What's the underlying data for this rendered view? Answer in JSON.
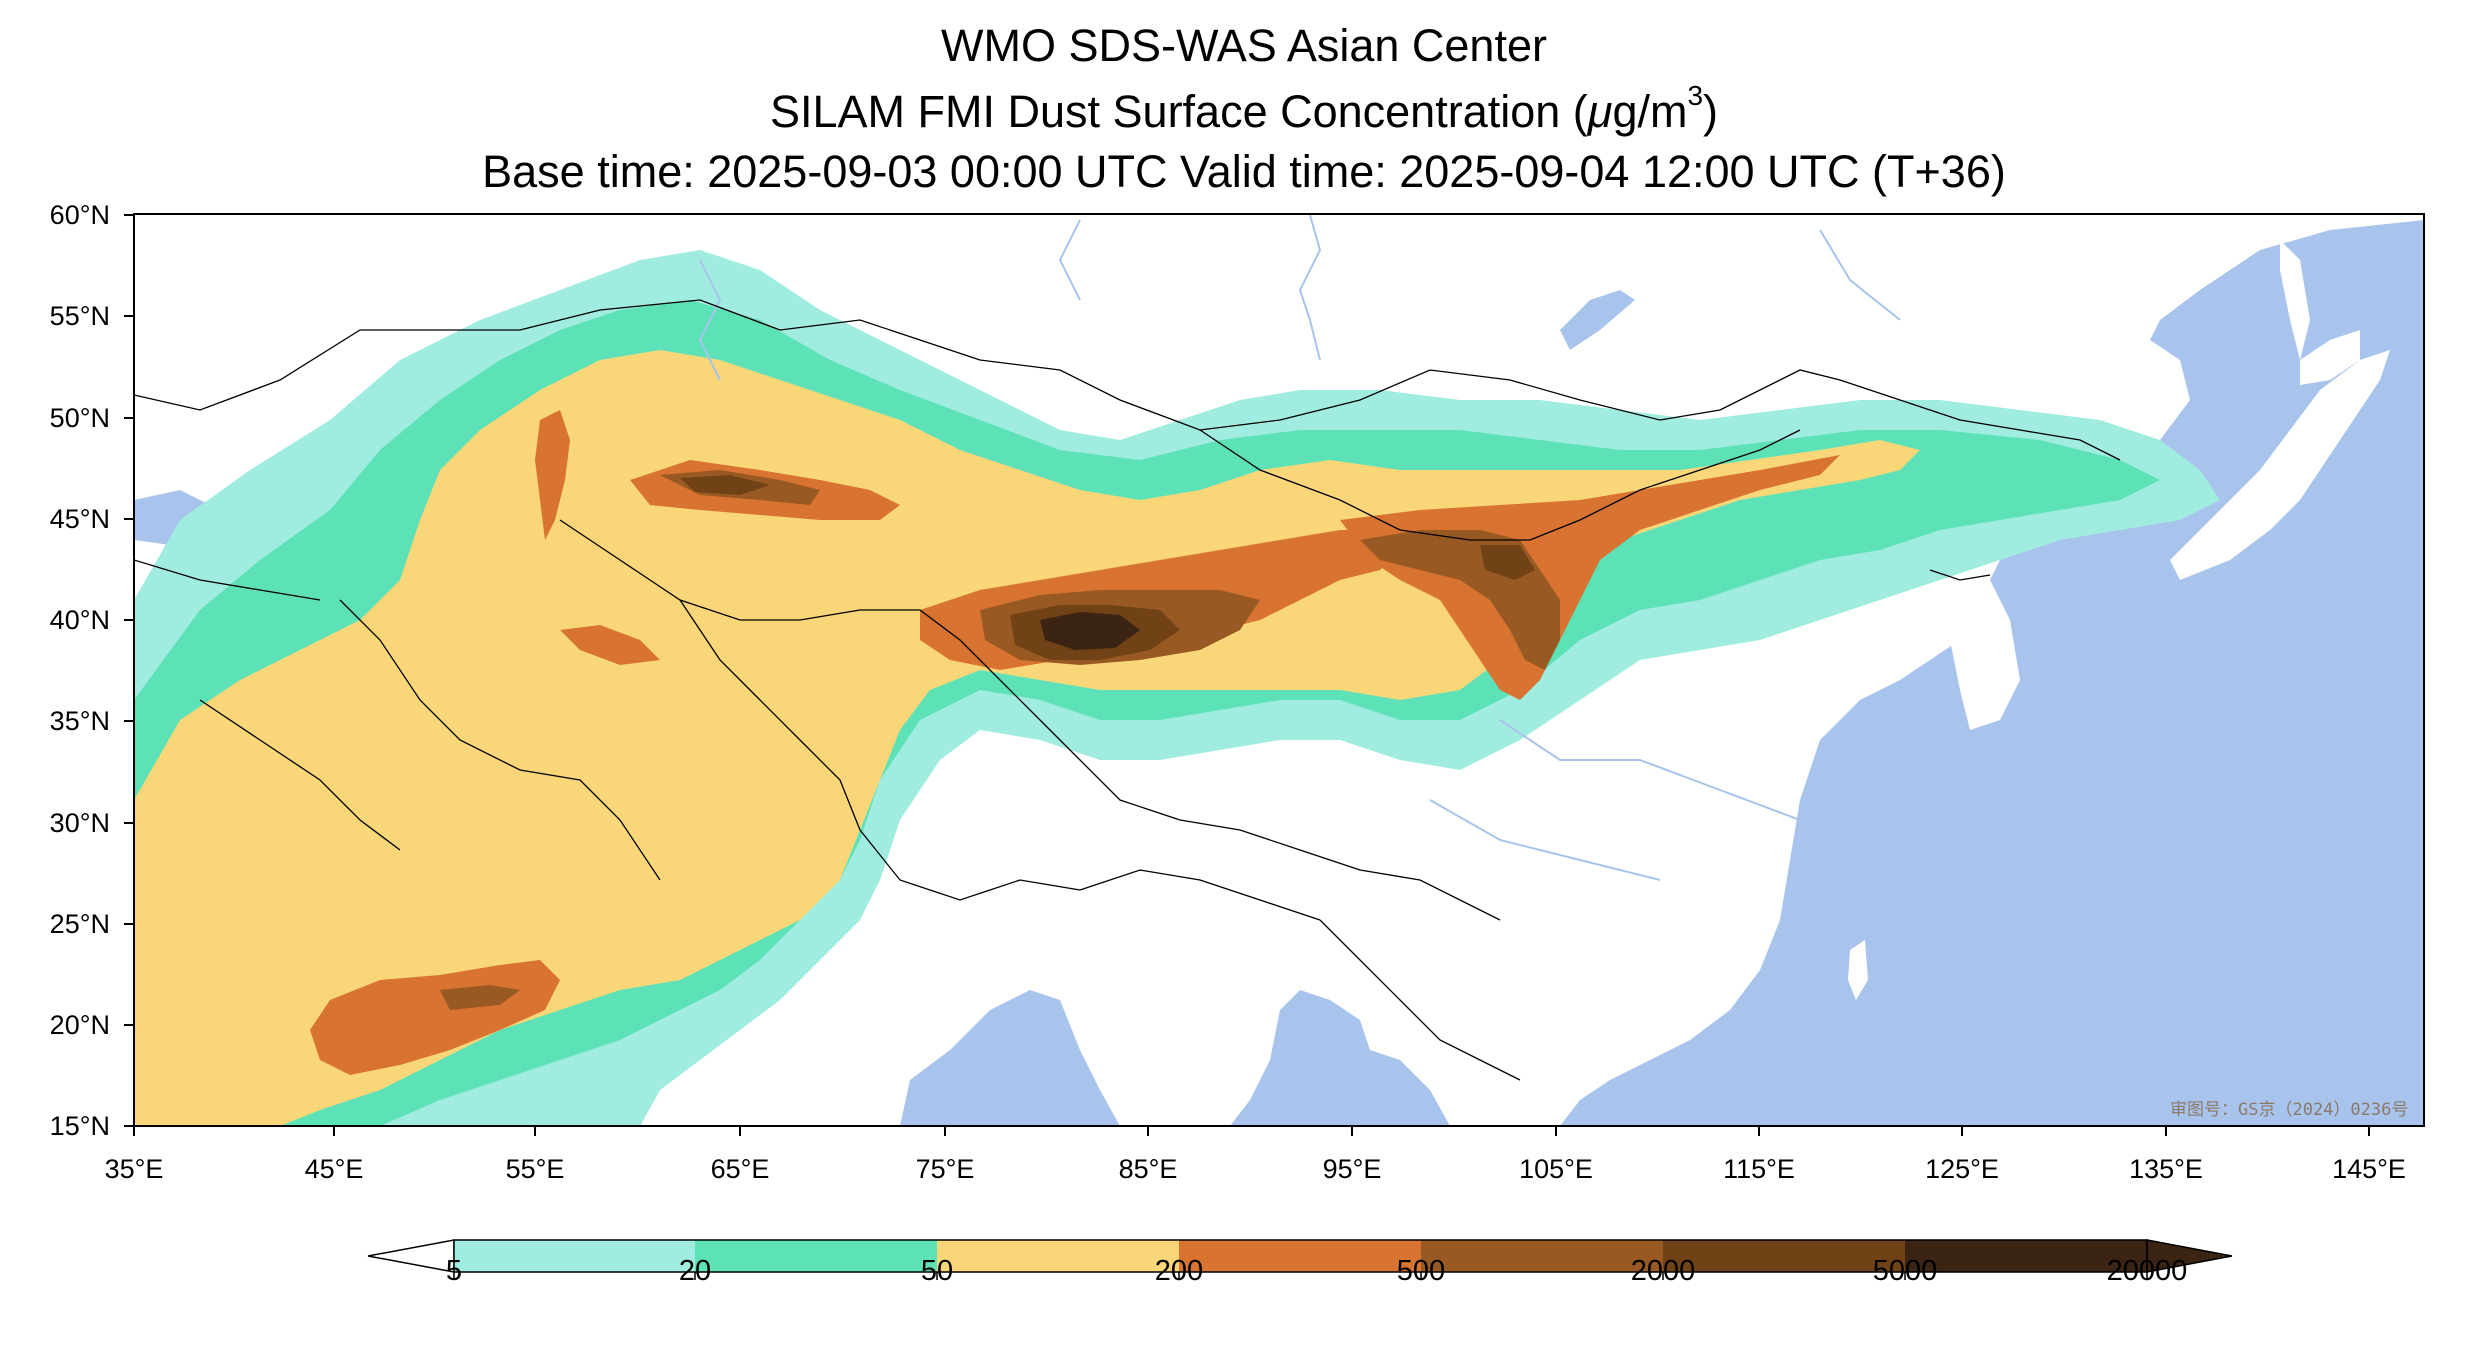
{
  "title": {
    "line1": "WMO SDS-WAS Asian Center",
    "line2_prefix": "SILAM FMI Dust Surface Concentration (",
    "line2_unit_mu": "μ",
    "line2_unit": "g/m",
    "line2_sup": "3",
    "line2_suffix": ")",
    "line3": "Base time: 2025-09-03 00:00 UTC Valid time: 2025-09-04 12:00 UTC (T+36)"
  },
  "map": {
    "lon_range": [
      35,
      150
    ],
    "lat_range": [
      15,
      60
    ],
    "lat_ticks": [
      "60°N",
      "55°N",
      "50°N",
      "45°N",
      "40°N",
      "35°N",
      "30°N",
      "25°N",
      "20°N",
      "15°N"
    ],
    "lon_ticks": [
      "35°E",
      "45°E",
      "55°E",
      "65°E",
      "75°E",
      "85°E",
      "95°E",
      "105°E",
      "115°E",
      "125°E",
      "135°E",
      "145°E"
    ],
    "ocean_color": "#a9c4ec",
    "land_color": "#ffffff",
    "approval_stamp": "审图号：GS京（2024）0236号"
  },
  "colorbar": {
    "levels": [
      "5",
      "20",
      "50",
      "200",
      "500",
      "2000",
      "5000",
      "20000"
    ],
    "colors": [
      "#a0ece0",
      "#5de2b8",
      "#f9d678",
      "#d87331",
      "#985922",
      "#704215",
      "#3b2413"
    ],
    "extend": "both"
  }
}
